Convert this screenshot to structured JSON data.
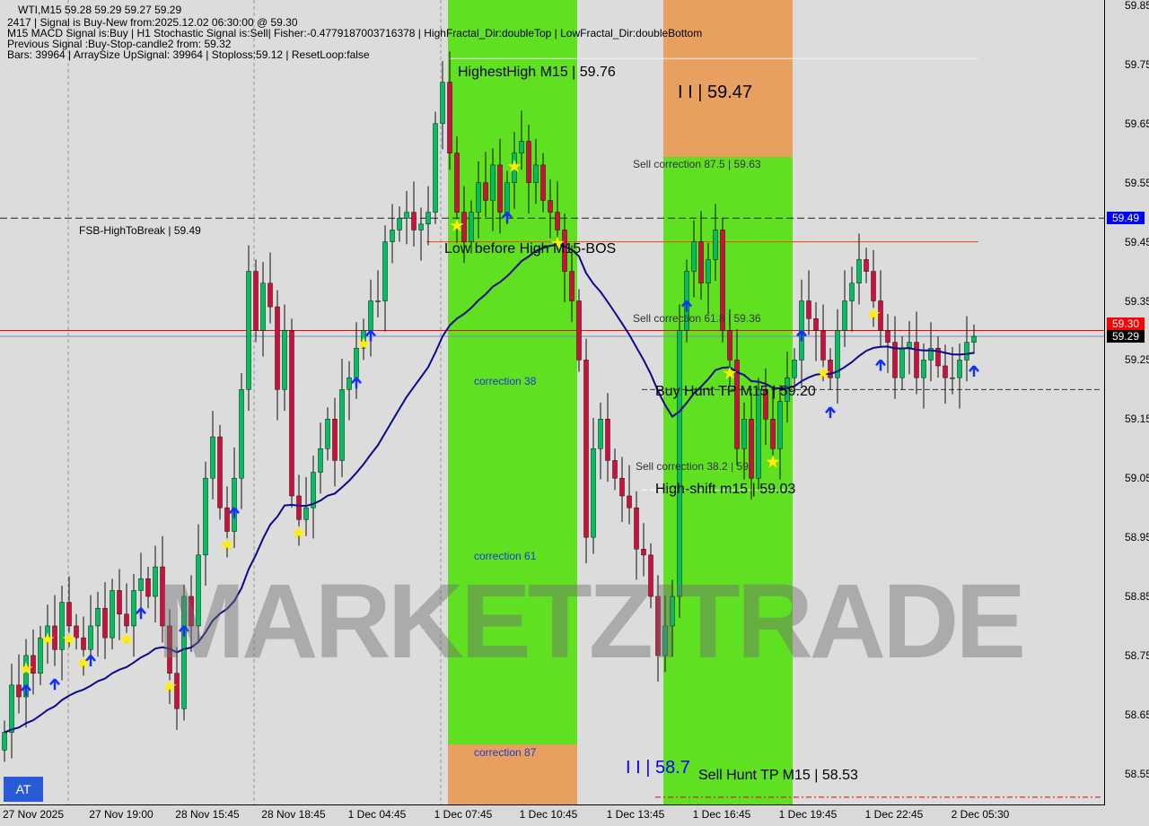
{
  "header": {
    "symbol_line": "WTI,M15  59.28 59.29 59.27 59.29",
    "signal_line": "2417 | Signal is Buy-New from:2025.12.02 06:30:00 @ 59.30",
    "macd_line": "M15 MACD Signal is:Buy | H1 Stochastic Signal is:Sell| Fisher:-0.4779187003716378 | HighFractal_Dir:doubleTop | LowFractal_Dir:doubleBottom",
    "previous_line": "Previous Signal :Buy-Stop-candle2 from: 59.32",
    "bars_line": "Bars: 39964 | ArraySize UpSignal: 39964 | Stoploss:59.12 | ResetLoop:false"
  },
  "annotations": {
    "highest_high": "HighestHigh    M15 | 59.76",
    "ii_top": "I I | 59.47",
    "sell_corr_875": "Sell correction 87.5 | 59.63",
    "fsb": "FSB-HighToBreak | 59.49",
    "low_before_high": "Low before High  M15-BOS",
    "sell_corr_618": "Sell correction 61.8 | 59.36",
    "corr38": "correction 38",
    "buy_hunt": "Buy Hunt TP M15 | 59.20",
    "sell_corr_382": "Sell correction 38.2 | 59.",
    "high_shift": "High-shift m15 | 59.03",
    "corr61": "correction 61",
    "corr87": "correction 87",
    "ii_bottom": "I I | 58.7",
    "sell_hunt": "Sell Hunt TP M15 | 58.53"
  },
  "watermark": "MARKETZITRADE",
  "at_button": "AT",
  "price_tags": {
    "fsb": "59.49",
    "signal": "59.30",
    "current": "59.29"
  },
  "colors": {
    "bull": "#00c060",
    "bear": "#d0103a",
    "ma": "#0a0a8c",
    "zone_green": "#5fe020",
    "zone_orange": "#e8a060",
    "fsb_tag": "#0000ff",
    "signal_tag": "#ff0000",
    "current_tag": "#000000"
  },
  "chart_data": {
    "type": "candlestick",
    "symbol": "WTI",
    "timeframe": "M15",
    "ylim": [
      58.53,
      59.87
    ],
    "yticks": [
      "59.85",
      "59.75",
      "59.65",
      "59.55",
      "59.45",
      "59.35",
      "59.25",
      "59.15",
      "59.05",
      "58.95",
      "58.85",
      "58.75",
      "58.65",
      "58.55"
    ],
    "xticks": [
      "27 Nov 2025",
      "27 Nov 19:00",
      "28 Nov 15:45",
      "28 Nov 18:45",
      "1 Dec 04:45",
      "1 Dec 07:45",
      "1 Dec 10:45",
      "1 Dec 13:45",
      "1 Dec 16:45",
      "1 Dec 19:45",
      "1 Dec 22:45",
      "2 Dec 05:30"
    ],
    "close": [
      58.62,
      58.7,
      58.68,
      58.75,
      58.72,
      58.78,
      58.8,
      58.76,
      58.84,
      58.8,
      58.78,
      58.76,
      58.8,
      58.83,
      58.78,
      58.86,
      58.82,
      58.8,
      58.86,
      58.88,
      58.85,
      58.9,
      58.8,
      58.72,
      58.66,
      58.85,
      58.8,
      58.92,
      59.05,
      59.12,
      59.0,
      58.96,
      59.05,
      59.2,
      59.4,
      59.3,
      59.38,
      59.34,
      59.2,
      59.3,
      59.02,
      58.98,
      59.0,
      59.06,
      59.1,
      59.15,
      59.08,
      59.2,
      59.22,
      59.27,
      59.3,
      59.35,
      59.35,
      59.45,
      59.47,
      59.49,
      59.5,
      59.47,
      59.48,
      59.5,
      59.65,
      59.72,
      59.6,
      59.5,
      59.45,
      59.5,
      59.55,
      59.52,
      59.58,
      59.5,
      59.55,
      59.6,
      59.62,
      59.55,
      59.58,
      59.52,
      59.5,
      59.47,
      59.4,
      59.35,
      59.25,
      58.95,
      59.1,
      59.15,
      59.08,
      59.05,
      59.02,
      59.0,
      58.93,
      58.92,
      58.85,
      58.75,
      58.8,
      58.85,
      59.3,
      59.4,
      59.45,
      59.38,
      59.42,
      59.47,
      59.3,
      59.25,
      59.1,
      59.15,
      59.05,
      59.2,
      59.15,
      59.1,
      59.18,
      59.22,
      59.25,
      59.35,
      59.32,
      59.3,
      59.25,
      59.22,
      59.3,
      59.35,
      59.38,
      59.42,
      59.4,
      59.35,
      59.3,
      59.28,
      59.22,
      59.27,
      59.28,
      59.22,
      59.25,
      59.27,
      59.24,
      59.22,
      59.22,
      59.25,
      59.28,
      59.29
    ],
    "levels": {
      "fsb_high_to_break": 59.49,
      "signal": 59.3,
      "current": 59.29,
      "low_before_high": 59.45,
      "buy_hunt_tp": 59.2,
      "high_shift": 59.03,
      "sell_hunt_tp": 58.53,
      "highest_high": 59.76
    },
    "buy_arrows": [
      3,
      7,
      12,
      19,
      25,
      32,
      49,
      51,
      70,
      95,
      111,
      115,
      122,
      135
    ],
    "stars": [
      3,
      6,
      9,
      11,
      17,
      23,
      31,
      41,
      50,
      63,
      71,
      77,
      101,
      107,
      114,
      121
    ]
  }
}
